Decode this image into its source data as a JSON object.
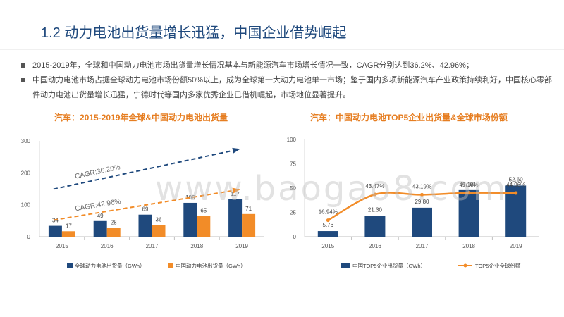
{
  "page": {
    "title": "1.2 动力电池出货量增长迅猛，中国企业借势崛起",
    "bullets": [
      "2015-2019年，全球和中国动力电池市场出货量增长情况基本与新能源汽车市场增长情况一致，CAGR分别达到36.2%、42.96%；",
      "中国动力电池市场占据全球动力电池市场份额50%以上，成为全球第一大动力电池单一市场；鉴于国内多项新能源汽车产业政策持续利好，中国核心零部件动力电池出货量增长迅猛，宁德时代等国内多家优秀企业已借机崛起，市场地位显著提升。"
    ],
    "watermark": "www.baogao8.com"
  },
  "colors": {
    "title": "#1F497D",
    "navy": "#1F497D",
    "orange": "#F28C28",
    "subtitle": "#E67E22"
  },
  "chart_data": [
    {
      "type": "bar",
      "title": "汽车：2015-2019年全球&中国动力电池出货量",
      "categories": [
        "2015",
        "2016",
        "2017",
        "2018",
        "2019"
      ],
      "series": [
        {
          "name": "全球动力电池出货量（GWh）",
          "values": [
            34,
            49,
            69,
            106,
            117
          ],
          "labels": [
            "34",
            "49",
            "69",
            "106",
            "117"
          ],
          "color": "#1F497D"
        },
        {
          "name": "中国动力电池出货量（GWh）",
          "values": [
            17,
            28,
            36,
            65,
            71
          ],
          "labels": [
            "17",
            "28",
            "36",
            "65",
            "71"
          ],
          "color": "#F28C28"
        }
      ],
      "ylim": [
        0,
        300
      ],
      "yticks": [
        "0",
        "100",
        "200",
        "300"
      ],
      "annotations": [
        {
          "text": "CAGR:36.20%",
          "color": "#1F497D"
        },
        {
          "text": "CAGR:42.96%",
          "color": "#F28C28"
        }
      ],
      "legend": "bottom"
    },
    {
      "type": "bar+line",
      "title": "汽车：中国动力电池TOP5企业出货量&全球市场份额",
      "categories": [
        "2015",
        "2016",
        "2017",
        "2018",
        "2019"
      ],
      "bars": {
        "name": "中国TOP5企业出货量（GWh）",
        "values": [
          5.76,
          21.3,
          29.8,
          47.91,
          52.6
        ],
        "labels": [
          "5.76",
          "21.30",
          "29.80",
          "47.91",
          "52.60"
        ],
        "color": "#1F497D"
      },
      "line": {
        "name": "TOP5企业全球份额",
        "values": [
          16.94,
          43.47,
          43.19,
          45.1,
          44.96
        ],
        "labels": [
          "16.94%",
          "43.47%",
          "43.19%",
          "45.10%",
          "44.96%"
        ],
        "color": "#F28C28"
      },
      "ylim": [
        0,
        100
      ],
      "yticks": [
        "0",
        "25",
        "50",
        "75",
        "100"
      ],
      "legend": "bottom"
    }
  ]
}
